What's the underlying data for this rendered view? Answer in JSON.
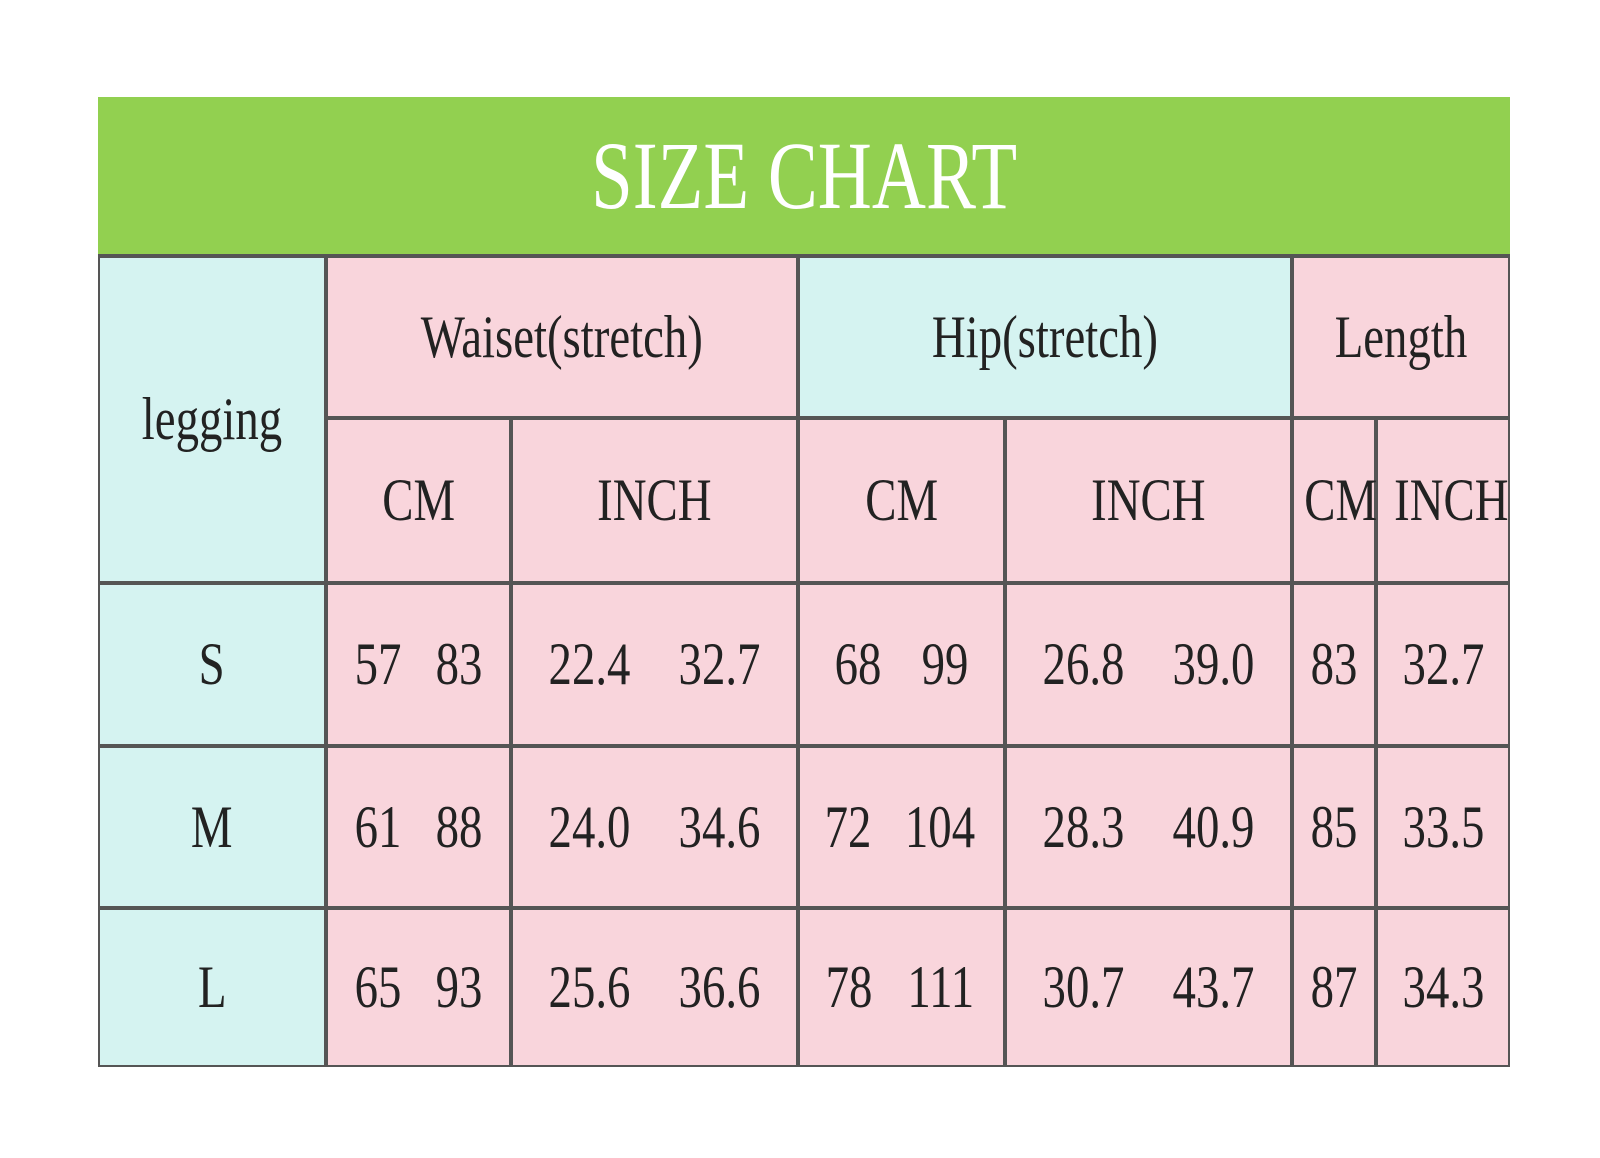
{
  "title": "SIZE CHART",
  "corner": "legging",
  "groups": [
    "Waiset(stretch)",
    "Hip(stretch)",
    "Length"
  ],
  "units": [
    "CM",
    "INCH",
    "CM",
    "INCH",
    "CM",
    "INCH"
  ],
  "rows": [
    {
      "size": "S",
      "cells": [
        [
          "57",
          "83"
        ],
        [
          "22.4",
          "32.7"
        ],
        [
          "68",
          "99"
        ],
        [
          "26.8",
          "39.0"
        ],
        [
          "83"
        ],
        [
          "32.7"
        ]
      ]
    },
    {
      "size": "M",
      "cells": [
        [
          "61",
          "88"
        ],
        [
          "24.0",
          "34.6"
        ],
        [
          "72",
          "104"
        ],
        [
          "28.3",
          "40.9"
        ],
        [
          "85"
        ],
        [
          "33.5"
        ]
      ]
    },
    {
      "size": "L",
      "cells": [
        [
          "65",
          "93"
        ],
        [
          "25.6",
          "36.6"
        ],
        [
          "78",
          "111"
        ],
        [
          "30.7",
          "43.7"
        ],
        [
          "87"
        ],
        [
          "34.3"
        ]
      ]
    }
  ]
}
